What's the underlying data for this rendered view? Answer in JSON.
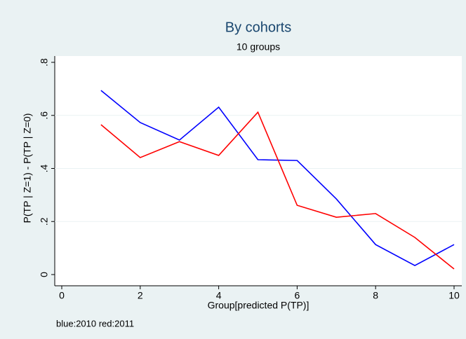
{
  "chart_data": {
    "type": "line",
    "title": "By cohorts",
    "subtitle": "10 groups",
    "x_label": "Group[predicted P(TP)]",
    "y_label": "P(TP | Z=1) - P(TP | Z=0)",
    "note": "blue:2010 red:2011",
    "x": [
      1,
      2,
      3,
      4,
      5,
      6,
      7,
      8,
      9,
      10
    ],
    "series": [
      {
        "color": "#0000ff",
        "values": [
          0.694,
          0.573,
          0.507,
          0.631,
          0.433,
          0.43,
          0.285,
          0.113,
          0.034,
          0.113
        ]
      },
      {
        "color": "#ff0000",
        "values": [
          0.565,
          0.441,
          0.501,
          0.449,
          0.612,
          0.261,
          0.216,
          0.23,
          0.14,
          0.021
        ]
      }
    ],
    "xlim": [
      0,
      10
    ],
    "xticks": [
      0,
      2,
      4,
      6,
      8,
      10
    ],
    "ylim": [
      0,
      0.8
    ],
    "yticks": [
      0,
      {
        "value": 0.2,
        "label": ".2"
      },
      {
        "value": 0.4,
        "label": ".4"
      },
      {
        "value": 0.6,
        "label": ".6"
      },
      {
        "value": 0.8,
        "label": ".8"
      }
    ],
    "grid": true
  }
}
